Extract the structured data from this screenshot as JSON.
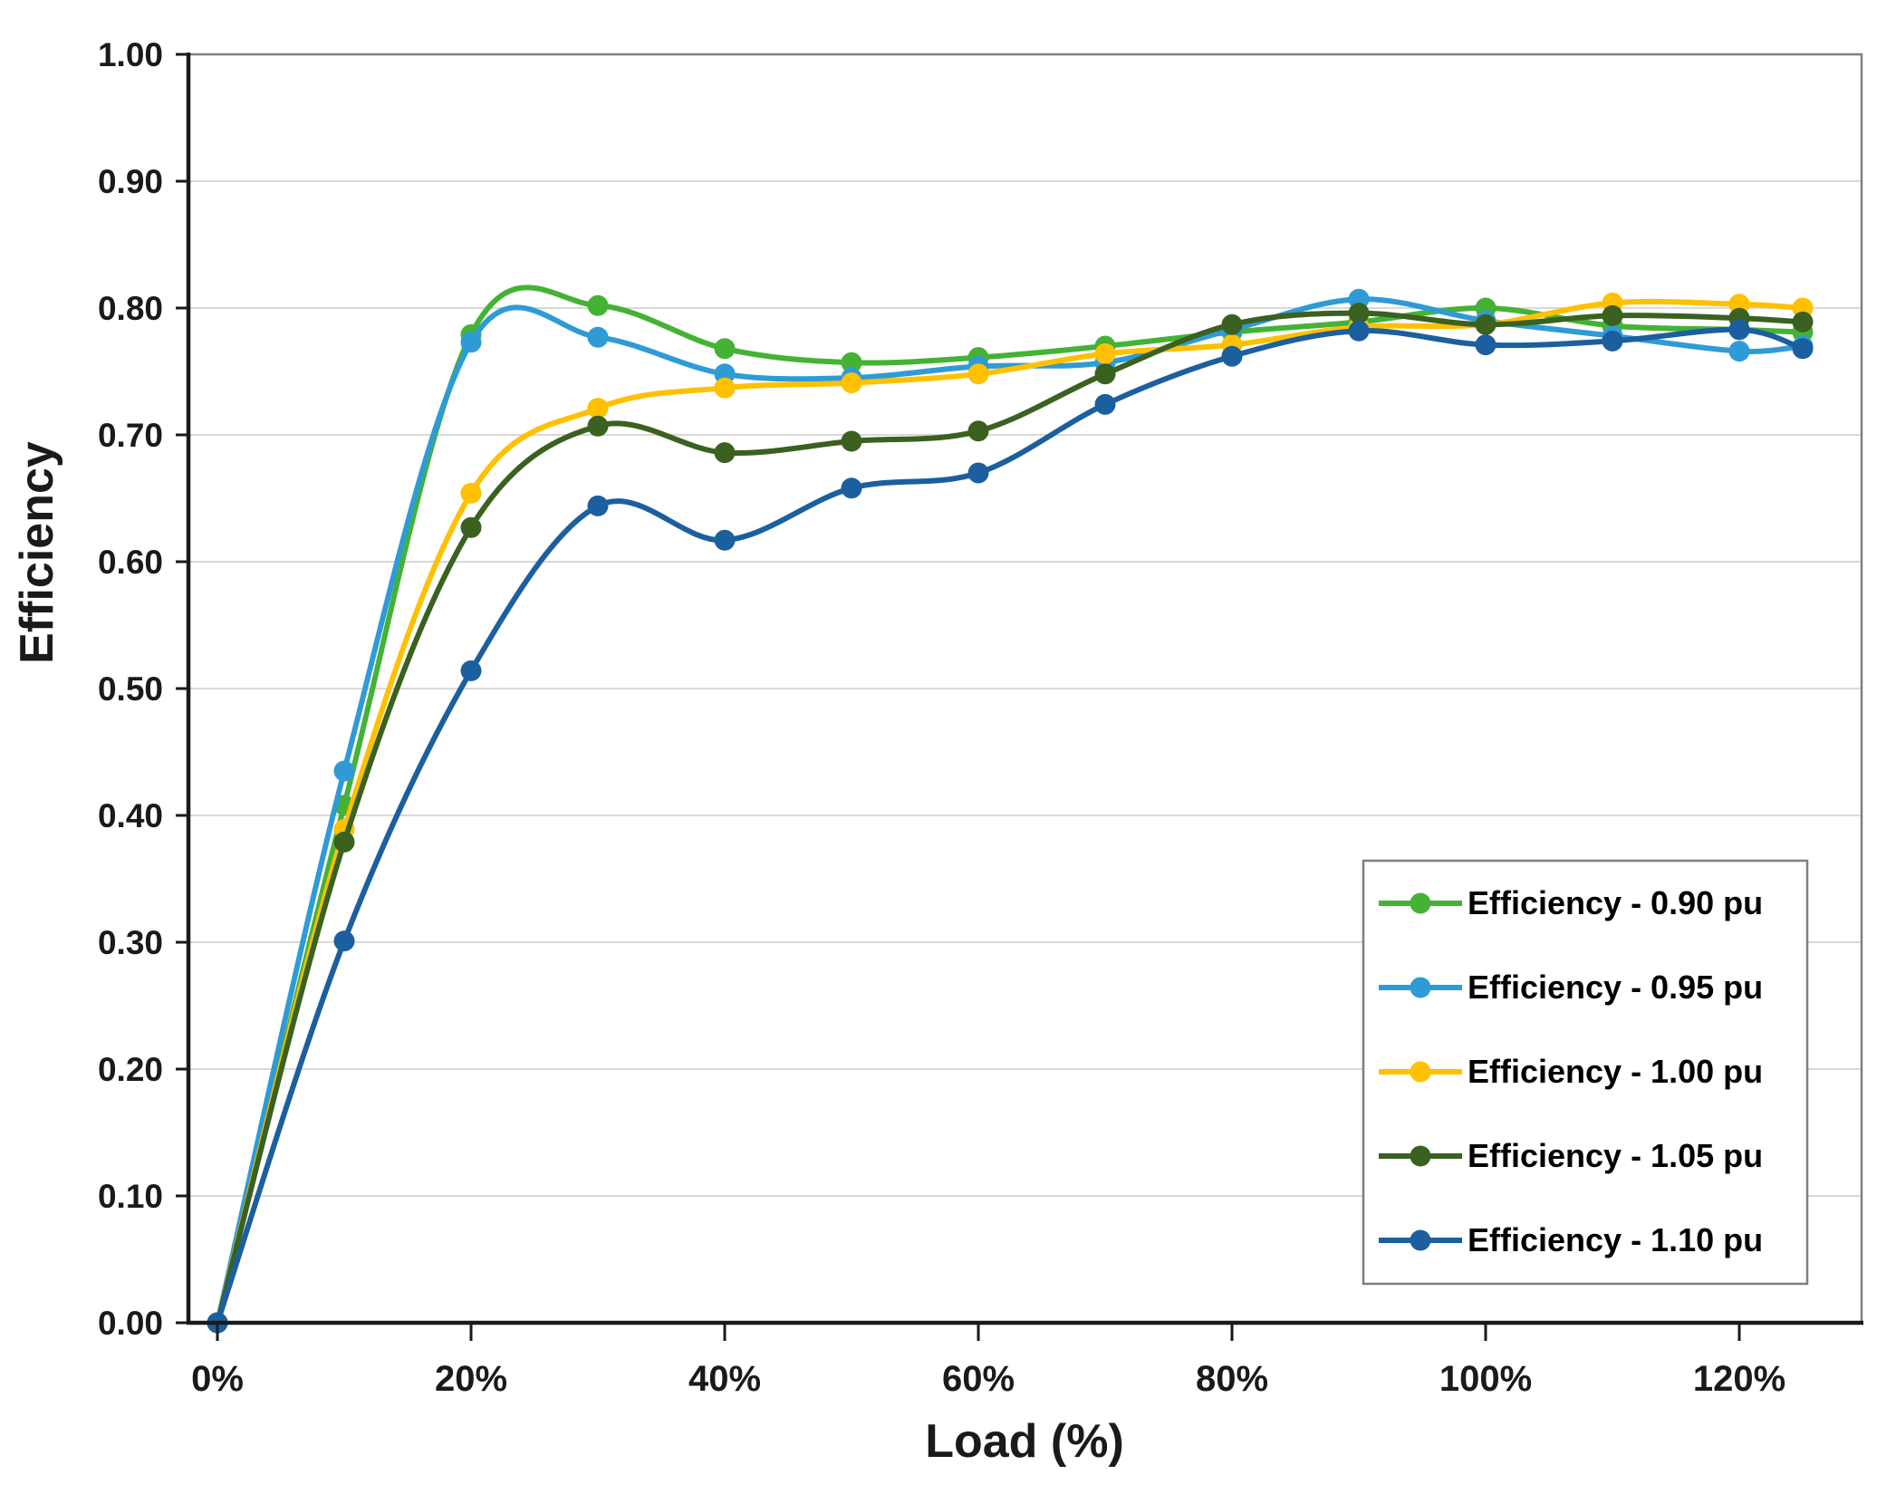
{
  "chart_data": {
    "type": "line",
    "title": "",
    "xlabel": "Load (%)",
    "ylabel": "Efficiency",
    "x": [
      0,
      10,
      20,
      30,
      40,
      50,
      60,
      70,
      80,
      90,
      100,
      110,
      120,
      125
    ],
    "series": [
      {
        "name": "Efficiency - 0.90 pu",
        "color": "#45B235",
        "values": [
          0.0,
          0.408,
          0.779,
          0.802,
          0.768,
          0.757,
          0.761,
          0.77,
          0.781,
          0.789,
          0.8,
          0.786,
          0.783,
          0.781
        ]
      },
      {
        "name": "Efficiency - 0.95 pu",
        "color": "#2E9BD6",
        "values": [
          0.0,
          0.435,
          0.773,
          0.777,
          0.748,
          0.745,
          0.754,
          0.757,
          0.783,
          0.807,
          0.79,
          0.778,
          0.766,
          0.77
        ]
      },
      {
        "name": "Efficiency - 1.00 pu",
        "color": "#FFC000",
        "values": [
          0.0,
          0.389,
          0.654,
          0.721,
          0.737,
          0.741,
          0.748,
          0.764,
          0.771,
          0.785,
          0.787,
          0.804,
          0.803,
          0.8
        ]
      },
      {
        "name": "Efficiency - 1.05 pu",
        "color": "#3A611F",
        "values": [
          0.0,
          0.379,
          0.627,
          0.707,
          0.686,
          0.695,
          0.703,
          0.748,
          0.787,
          0.796,
          0.787,
          0.794,
          0.792,
          0.789
        ]
      },
      {
        "name": "Efficiency - 1.10 pu",
        "color": "#1C5F9E",
        "values": [
          0.0,
          0.301,
          0.514,
          0.644,
          0.617,
          0.658,
          0.67,
          0.724,
          0.762,
          0.782,
          0.771,
          0.774,
          0.783,
          0.768
        ]
      }
    ],
    "x_ticks": [
      "0%",
      "20%",
      "40%",
      "60%",
      "80%",
      "100%",
      "120%"
    ],
    "x_tick_values": [
      0,
      20,
      40,
      60,
      80,
      100,
      120
    ],
    "y_ticks": [
      "0.00",
      "0.10",
      "0.20",
      "0.30",
      "0.40",
      "0.50",
      "0.60",
      "0.70",
      "0.80",
      "0.90",
      "1.00"
    ],
    "y_tick_values": [
      0.0,
      0.1,
      0.2,
      0.3,
      0.4,
      0.5,
      0.6,
      0.7,
      0.8,
      0.9,
      1.0
    ],
    "ylim": [
      0.0,
      1.0
    ],
    "xlim_pct": [
      -2.3,
      129.6
    ],
    "grid": "horizontal",
    "legend_position": "inside-bottom-right",
    "smoothed_lines": true
  },
  "style_colors": {
    "gridline": "#D9D9D9",
    "plot_border": "#808080",
    "axis_line": "#1a1a1a",
    "legend_border": "#7F7F7F",
    "background": "#FFFFFF"
  }
}
